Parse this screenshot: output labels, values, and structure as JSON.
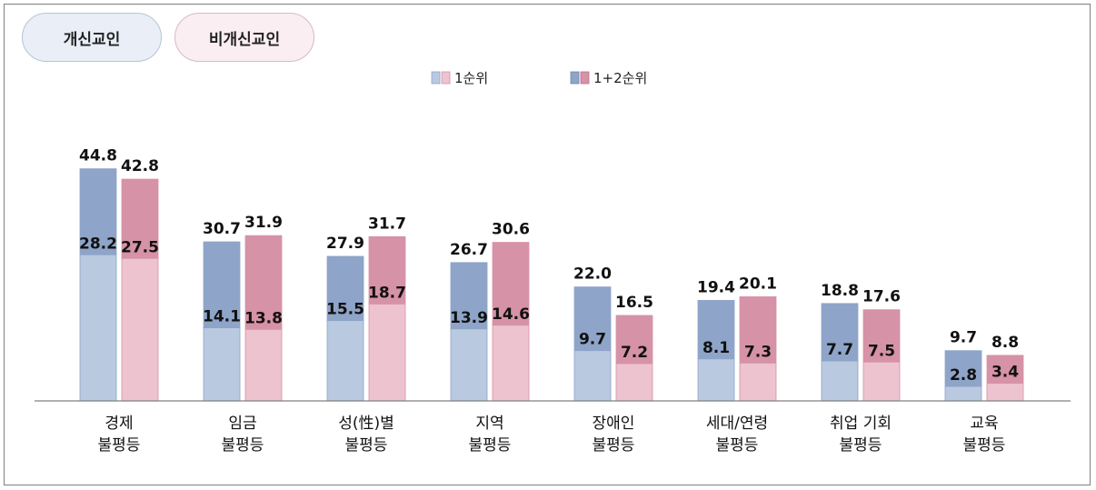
{
  "toggles": {
    "reformist": "개신교인",
    "non_reformist": "비개신교인"
  },
  "legend": {
    "first": "1순위",
    "combined": "1+2순위"
  },
  "colors": {
    "reformist_light": "#b9c9df",
    "reformist_dark": "#8ea4c8",
    "non_reformist_light": "#edc3cf",
    "non_reformist_dark": "#d692a6",
    "axis": "#808080"
  },
  "chart_data": {
    "type": "bar",
    "stacked": true,
    "categories": [
      [
        "경제",
        "불평등"
      ],
      [
        "임금",
        "불평등"
      ],
      [
        "성(性)별",
        "불평등"
      ],
      [
        "지역",
        "불평등"
      ],
      [
        "장애인",
        "불평등"
      ],
      [
        "세대/연령",
        "불평등"
      ],
      [
        "취업 기회",
        "불평등"
      ],
      [
        "교육",
        "불평등"
      ]
    ],
    "groups": [
      {
        "name": "개신교인",
        "first": [
          28.2,
          14.1,
          15.5,
          13.9,
          9.7,
          8.1,
          7.7,
          2.8
        ],
        "combined": [
          44.8,
          30.7,
          27.9,
          26.7,
          22.0,
          19.4,
          18.8,
          9.7
        ]
      },
      {
        "name": "비개신교인",
        "first": [
          27.5,
          13.8,
          18.7,
          14.6,
          7.2,
          7.3,
          7.5,
          3.4
        ],
        "combined": [
          42.8,
          31.9,
          31.7,
          30.6,
          16.5,
          20.1,
          17.6,
          8.8
        ]
      }
    ],
    "series": [
      {
        "name": "1순위"
      },
      {
        "name": "1+2순위"
      }
    ],
    "ylim": [
      0,
      50
    ],
    "grid": false,
    "legend_position": "top-center"
  }
}
